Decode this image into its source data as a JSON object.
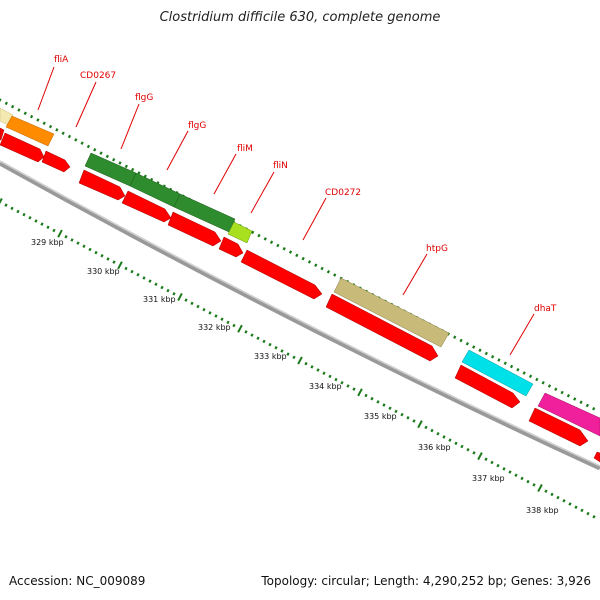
{
  "title": "Clostridium difficile 630, complete genome",
  "footer": {
    "accession": "Accession: NC_009089",
    "summary": "Topology: circular; Length: 4,290,252 bp; Genes: 3,926"
  },
  "gene_labels": [
    "fliA",
    "CD0267",
    "flgG",
    "flgG",
    "fliM",
    "fliN",
    "CD0272",
    "htpG",
    "dhaT"
  ],
  "kbp_ticks": [
    "329 kbp",
    "330 kbp",
    "331 kbp",
    "332 kbp",
    "333 kbp",
    "334 kbp",
    "335 kbp",
    "336 kbp",
    "337 kbp",
    "338 kbp"
  ],
  "colors": {
    "label_red": "#e00000",
    "cds": "#ff0000",
    "backbone": "#888888",
    "tick_green": "#1a7a1a",
    "feature_orange": "#ff8c00",
    "feature_dark_green": "#2e8b2e",
    "feature_light_green": "#a8e020",
    "feature_khaki": "#c8bb7a",
    "feature_cyan": "#00e0e8",
    "feature_magenta": "#f0209c",
    "feature_pale_yellow": "#f2e8b0"
  }
}
